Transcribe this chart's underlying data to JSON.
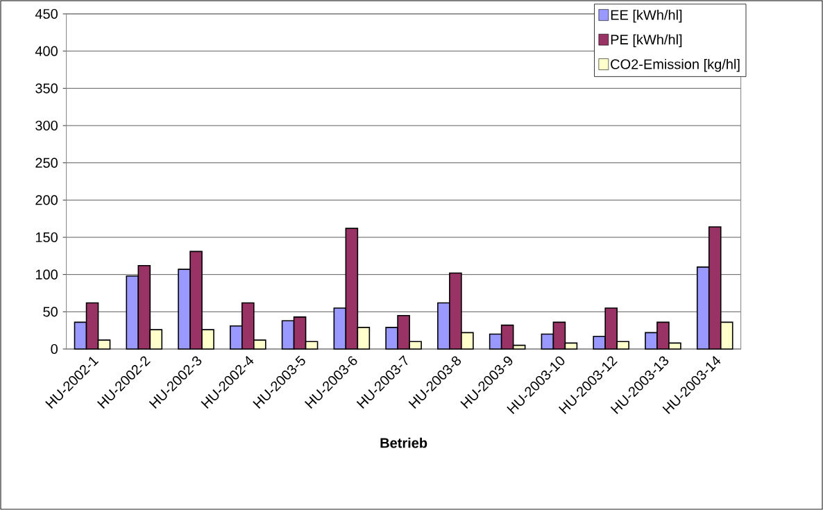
{
  "chart_data": {
    "type": "bar",
    "xlabel": "Betrieb",
    "categories": [
      "HU-2002-1",
      "HU-2002-2",
      "HU-2002-3",
      "HU-2002-4",
      "HU-2003-5",
      "HU-2003-6",
      "HU-2003-7",
      "HU-2003-8",
      "HU-2003-9",
      "HU-2003-10",
      "HU-2003-12",
      "HU-2003-13",
      "HU-2003-14"
    ],
    "series": [
      {
        "name": "EE [kWh/hl]",
        "color": "#9999ff",
        "values": [
          36,
          98,
          107,
          31,
          38,
          55,
          29,
          62,
          20,
          20,
          17,
          22,
          110
        ]
      },
      {
        "name": "PE [kWh/hl]",
        "color": "#993366",
        "values": [
          62,
          112,
          131,
          62,
          43,
          162,
          45,
          102,
          32,
          36,
          55,
          36,
          164
        ]
      },
      {
        "name": "CO2-Emission [kg/hl]",
        "color": "#ffffcc",
        "values": [
          12,
          26,
          26,
          12,
          10,
          29,
          10,
          22,
          5,
          8,
          10,
          8,
          36
        ]
      }
    ],
    "ylim": [
      0,
      450
    ],
    "yticks": [
      0,
      50,
      100,
      150,
      200,
      250,
      300,
      350,
      400,
      450
    ],
    "grid": "y",
    "legend": "top right"
  }
}
